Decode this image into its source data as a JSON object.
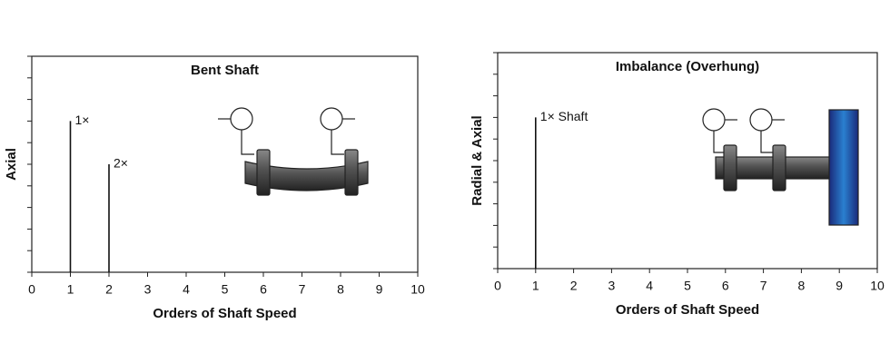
{
  "chart_data": [
    {
      "type": "spectrum",
      "title": "Bent Shaft",
      "x_label": "Orders of Shaft Speed",
      "y_label": "Axial",
      "x": [
        1,
        2
      ],
      "values": [
        7,
        5
      ],
      "labels": [
        "1×",
        "2×"
      ],
      "color": "#111111",
      "xlim": [
        0,
        10
      ],
      "xticks": [
        0,
        1,
        2,
        3,
        4,
        5,
        6,
        7,
        8,
        9,
        10
      ],
      "ylim": [
        0,
        10
      ],
      "yticks": [
        0,
        1,
        2,
        3,
        4,
        5,
        6,
        7,
        8,
        9,
        10
      ]
    },
    {
      "type": "spectrum",
      "title": "Imbalance (Overhung)",
      "x_label": "Orders of Shaft Speed",
      "y_label": "Radial & Axial",
      "x": [
        1
      ],
      "values": [
        7
      ],
      "labels": [
        "1× Shaft"
      ],
      "color": "#111111",
      "xlim": [
        0,
        10
      ],
      "xticks": [
        0,
        1,
        2,
        3,
        4,
        5,
        6,
        7,
        8,
        9,
        10
      ],
      "ylim": [
        0,
        10
      ],
      "yticks": [
        0,
        1,
        2,
        3,
        4,
        5,
        6,
        7,
        8,
        9,
        10
      ]
    }
  ]
}
